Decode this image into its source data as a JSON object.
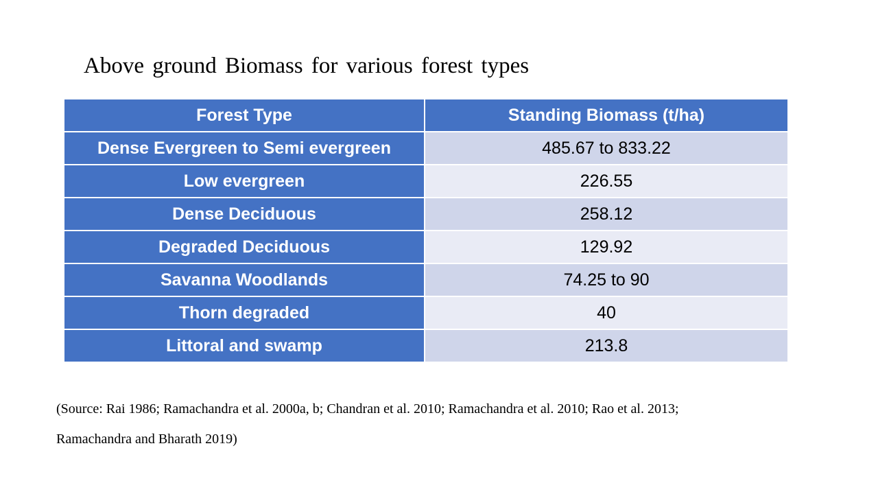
{
  "title": "Above ground Biomass for various forest types",
  "table": {
    "header": [
      "Forest Type",
      "Standing Biomass (t/ha)"
    ],
    "rows": [
      [
        "Dense Evergreen to Semi evergreen",
        "485.67 to 833.22"
      ],
      [
        "Low evergreen",
        "226.55"
      ],
      [
        "Dense Deciduous",
        "258.12"
      ],
      [
        "Degraded Deciduous",
        "129.92"
      ],
      [
        "Savanna Woodlands",
        "74.25 to 90"
      ],
      [
        "Thorn degraded",
        "40"
      ],
      [
        "Littoral and swamp",
        "213.8"
      ]
    ]
  },
  "source": {
    "lines": [
      "(Source: Rai 1986; Ramachandra et al. 2000a, b; Chandran et al. 2010; Ramachandra et al. 2010; Rao et al. 2013;",
      "Ramachandra and Bharath 2019)"
    ]
  }
}
